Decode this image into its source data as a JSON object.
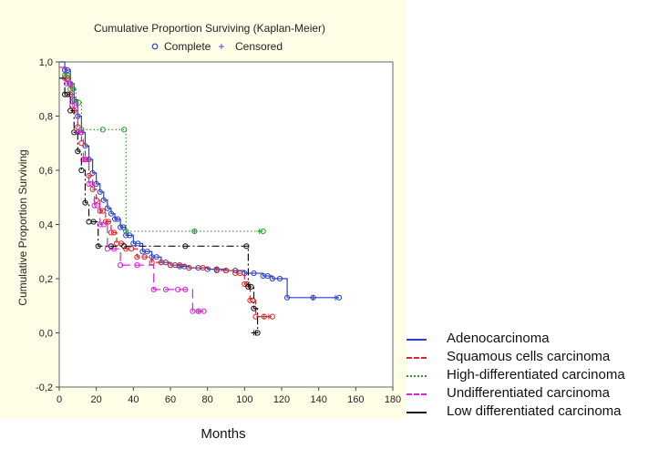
{
  "chart_data": {
    "type": "line",
    "title": "Cumulative Proportion Surviving (Kaplan-Meier)",
    "marker_legend": [
      {
        "symbol": "o",
        "label": "Complete"
      },
      {
        "symbol": "+",
        "label": "Censored"
      }
    ],
    "xlabel": "Months",
    "ylabel": "Cumulative Proportion Surviving",
    "xlim": [
      0,
      180
    ],
    "ylim": [
      -0.2,
      1.0
    ],
    "xticks": [
      "0",
      "20",
      "40",
      "60",
      "80",
      "100",
      "120",
      "140",
      "160",
      "180"
    ],
    "yticks": [
      "1,0",
      "0,8",
      "0,6",
      "0,4",
      "0,2",
      "0,0",
      "-0,2"
    ],
    "series": [
      {
        "name": "Adenocarcinoma",
        "color": "#2b3fcf",
        "dash": "solid",
        "steps": [
          [
            0,
            1.0
          ],
          [
            3,
            0.97
          ],
          [
            6,
            0.92
          ],
          [
            8,
            0.86
          ],
          [
            10,
            0.8
          ],
          [
            12,
            0.74
          ],
          [
            14,
            0.69
          ],
          [
            16,
            0.64
          ],
          [
            18,
            0.59
          ],
          [
            20,
            0.55
          ],
          [
            22,
            0.52
          ],
          [
            24,
            0.49
          ],
          [
            26,
            0.46
          ],
          [
            28,
            0.44
          ],
          [
            30,
            0.42
          ],
          [
            33,
            0.39
          ],
          [
            36,
            0.36
          ],
          [
            40,
            0.33
          ],
          [
            45,
            0.3
          ],
          [
            50,
            0.28
          ],
          [
            55,
            0.26
          ],
          [
            60,
            0.25
          ],
          [
            65,
            0.245
          ],
          [
            70,
            0.24
          ],
          [
            80,
            0.235
          ],
          [
            90,
            0.23
          ],
          [
            100,
            0.22
          ],
          [
            110,
            0.21
          ],
          [
            115,
            0.2
          ],
          [
            123,
            0.13
          ],
          [
            151,
            0.13
          ]
        ],
        "end": 151
      },
      {
        "name": "Squamous cells carcinoma",
        "color": "#e02424",
        "dash": "dashed",
        "steps": [
          [
            0,
            0.98
          ],
          [
            3,
            0.94
          ],
          [
            6,
            0.88
          ],
          [
            8,
            0.82
          ],
          [
            10,
            0.76
          ],
          [
            12,
            0.7
          ],
          [
            14,
            0.64
          ],
          [
            16,
            0.58
          ],
          [
            18,
            0.53
          ],
          [
            20,
            0.49
          ],
          [
            22,
            0.45
          ],
          [
            25,
            0.41
          ],
          [
            28,
            0.37
          ],
          [
            31,
            0.33
          ],
          [
            36,
            0.31
          ],
          [
            42,
            0.28
          ],
          [
            50,
            0.26
          ],
          [
            60,
            0.25
          ],
          [
            70,
            0.24
          ],
          [
            85,
            0.23
          ],
          [
            95,
            0.22
          ],
          [
            100,
            0.18
          ],
          [
            103,
            0.12
          ],
          [
            106,
            0.06
          ],
          [
            115,
            0.06
          ]
        ],
        "end": 115
      },
      {
        "name": "High-differentiated carcinoma",
        "color": "#2a9a2a",
        "dash": "dotted",
        "steps": [
          [
            0,
            1.0
          ],
          [
            3,
            0.95
          ],
          [
            6,
            0.9
          ],
          [
            9,
            0.85
          ],
          [
            12,
            0.75
          ],
          [
            35,
            0.75
          ],
          [
            36,
            0.375
          ],
          [
            110,
            0.375
          ]
        ],
        "end": 110
      },
      {
        "name": "Undifferentiated carcinoma",
        "color": "#e020e0",
        "dash": "long-dash",
        "steps": [
          [
            0,
            0.98
          ],
          [
            4,
            0.92
          ],
          [
            7,
            0.84
          ],
          [
            10,
            0.74
          ],
          [
            13,
            0.64
          ],
          [
            16,
            0.55
          ],
          [
            19,
            0.47
          ],
          [
            22,
            0.4
          ],
          [
            26,
            0.31
          ],
          [
            33,
            0.25
          ],
          [
            51,
            0.16
          ],
          [
            64,
            0.16
          ],
          [
            72,
            0.08
          ],
          [
            78,
            0.08
          ]
        ],
        "end": 78
      },
      {
        "name": "Low differentiated carcinoma",
        "color": "#111111",
        "dash": "dash-dot",
        "steps": [
          [
            0,
            0.94
          ],
          [
            3,
            0.88
          ],
          [
            6,
            0.82
          ],
          [
            8,
            0.74
          ],
          [
            10,
            0.67
          ],
          [
            12,
            0.6
          ],
          [
            14,
            0.48
          ],
          [
            16,
            0.41
          ],
          [
            21,
            0.32
          ],
          [
            35,
            0.32
          ],
          [
            101,
            0.32
          ],
          [
            102,
            0.17
          ],
          [
            105,
            0.09
          ],
          [
            107,
            0.0
          ]
        ],
        "end": 107
      }
    ]
  }
}
